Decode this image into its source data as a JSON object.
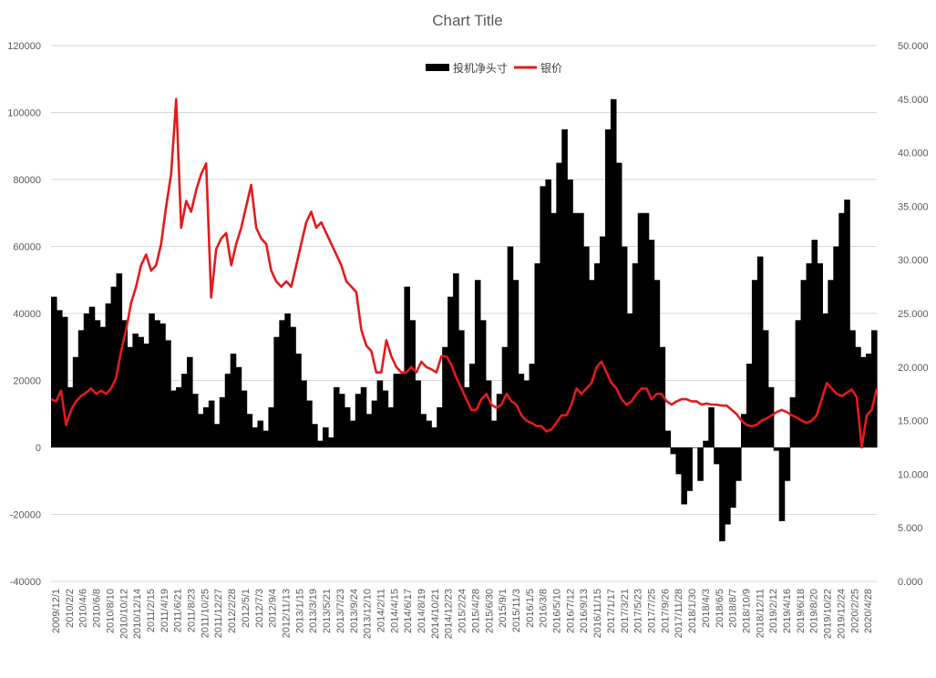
{
  "chart_data": {
    "type": "bar+line",
    "title": "Chart Title",
    "legend": {
      "position": "top",
      "items": [
        {
          "name": "投机净头寸",
          "color": "#000000",
          "symbol": "bar"
        },
        {
          "name": "银价",
          "color": "#e31a1c",
          "symbol": "line"
        }
      ]
    },
    "y_left": {
      "min": -40000,
      "max": 120000,
      "step": 20000,
      "ticks": [
        "-40000",
        "-20000",
        "0",
        "20000",
        "40000",
        "60000",
        "80000",
        "100000",
        "120000"
      ]
    },
    "y_right": {
      "min": 0,
      "max": 50,
      "step": 5,
      "ticks": [
        "0.000",
        "5.000",
        "10.000",
        "15.000",
        "20.000",
        "25.000",
        "30.000",
        "35.000",
        "40.000",
        "45.000",
        "50.000"
      ]
    },
    "x_tick_labels": [
      "2009/12/1",
      "2010/2/2",
      "2010/4/6",
      "2010/6/8",
      "2010/8/10",
      "2010/10/12",
      "2010/12/14",
      "2011/2/15",
      "2011/4/19",
      "2011/6/21",
      "2011/8/23",
      "2011/10/25",
      "2011/12/27",
      "2012/2/28",
      "2012/5/1",
      "2012/7/3",
      "2012/9/4",
      "2012/11/13",
      "2013/1/15",
      "2013/3/19",
      "2013/5/21",
      "2013/7/23",
      "2013/9/24",
      "2013/12/10",
      "2014/2/11",
      "2014/4/15",
      "2014/6/17",
      "2014/8/19",
      "2014/10/21",
      "2014/12/23",
      "2015/2/24",
      "2015/4/28",
      "2015/6/30",
      "2015/9/1",
      "2015/11/3",
      "2016/1/5",
      "2016/3/8",
      "2016/5/10",
      "2016/7/12",
      "2016/9/13",
      "2016/11/15",
      "2017/1/17",
      "2017/3/21",
      "2017/5/23",
      "2017/7/25",
      "2017/9/26",
      "2017/11/28",
      "2018/1/30",
      "2018/4/3",
      "2018/6/5",
      "2018/8/7",
      "2018/10/9",
      "2018/12/11",
      "2019/2/12",
      "2019/4/16",
      "2019/6/18",
      "2019/8/20",
      "2019/10/22",
      "2019/12/24",
      "2020/2/25",
      "2020/4/28"
    ],
    "series": [
      {
        "name": "投机净头寸",
        "type": "bar",
        "axis": "left",
        "color": "#000000",
        "points_per_tick": 9,
        "values": [
          45000,
          41000,
          39000,
          18000,
          27000,
          35000,
          40000,
          42000,
          38000,
          36000,
          43000,
          48000,
          52000,
          38000,
          30000,
          34000,
          33000,
          31000,
          40000,
          38000,
          37000,
          32000,
          17000,
          18000,
          22000,
          27000,
          16000,
          10000,
          12000,
          14000,
          7000,
          15000,
          22000,
          28000,
          24000,
          17000,
          10000,
          6000,
          8000,
          5000,
          12000,
          33000,
          38000,
          40000,
          36000,
          28000,
          20000,
          14000,
          7000,
          2000,
          6000,
          3000,
          18000,
          16000,
          12000,
          8000,
          16000,
          18000,
          10000,
          14000,
          20000,
          17000,
          12000,
          22000,
          22000,
          48000,
          38000,
          20000,
          10000,
          8000,
          6000,
          12000,
          30000,
          45000,
          52000,
          35000,
          18000,
          25000,
          50000,
          38000,
          20000,
          8000,
          16000,
          30000,
          60000,
          50000,
          22000,
          20000,
          25000,
          55000,
          78000,
          80000,
          70000,
          85000,
          95000,
          80000,
          70000,
          70000,
          60000,
          50000,
          55000,
          63000,
          95000,
          104000,
          85000,
          60000,
          40000,
          55000,
          70000,
          70000,
          62000,
          50000,
          30000,
          5000,
          -2000,
          -8000,
          -17000,
          -13000,
          0,
          -10000,
          2000,
          12000,
          -5000,
          -28000,
          -23000,
          -18000,
          -10000,
          10000,
          25000,
          50000,
          57000,
          35000,
          18000,
          -1000,
          -22000,
          -10000,
          15000,
          38000,
          50000,
          55000,
          62000,
          55000,
          40000,
          50000,
          60000,
          70000,
          74000,
          35000,
          30000,
          27000,
          28000,
          35000
        ]
      },
      {
        "name": "银价",
        "type": "line",
        "axis": "right",
        "color": "#e31a1c",
        "points_per_tick": 9,
        "values": [
          17.0,
          16.8,
          17.8,
          14.6,
          16.0,
          16.8,
          17.3,
          17.6,
          18.0,
          17.5,
          17.8,
          17.5,
          18.0,
          19.0,
          21.5,
          23.5,
          26.0,
          27.5,
          29.5,
          30.5,
          29.0,
          29.5,
          31.5,
          35.0,
          38.0,
          45.0,
          33.0,
          35.5,
          34.5,
          36.5,
          38.0,
          39.0,
          26.5,
          31.0,
          32.0,
          32.5,
          29.5,
          31.5,
          33.0,
          35.0,
          37.0,
          33.0,
          32.0,
          31.5,
          29.0,
          28.0,
          27.5,
          28.0,
          27.5,
          29.5,
          31.5,
          33.5,
          34.5,
          33.0,
          33.5,
          32.5,
          31.5,
          30.5,
          29.5,
          28.0,
          27.5,
          27.0,
          23.5,
          22.0,
          21.5,
          19.5,
          19.5,
          22.5,
          21.0,
          20.0,
          19.5,
          19.5,
          20.0,
          19.5,
          20.5,
          20.0,
          19.8,
          19.5,
          21.0,
          21.0,
          20.2,
          19.0,
          18.0,
          17.0,
          16.0,
          16.0,
          17.0,
          17.5,
          16.5,
          16.2,
          16.5,
          17.5,
          16.8,
          16.5,
          15.5,
          15.0,
          14.8,
          14.5,
          14.5,
          14.0,
          14.2,
          14.8,
          15.5,
          15.5,
          16.5,
          18.0,
          17.5,
          18.0,
          18.5,
          20.0,
          20.5,
          19.5,
          18.5,
          18.0,
          17.0,
          16.5,
          16.8,
          17.5,
          18.0,
          18.0,
          17.0,
          17.5,
          17.5,
          16.8,
          16.5,
          16.8,
          17.0,
          17.0,
          16.8,
          16.8,
          16.5,
          16.6,
          16.5,
          16.5,
          16.4,
          16.4,
          16.0,
          15.6,
          15.0,
          14.6,
          14.5,
          14.6,
          15.0,
          15.2,
          15.5,
          15.8,
          16.0,
          15.8,
          15.5,
          15.3,
          15.0,
          14.8,
          15.0,
          15.5,
          17.0,
          18.5,
          18.0,
          17.5,
          17.3,
          17.6,
          17.9,
          17.2,
          12.5,
          15.5,
          16.0,
          18.0
        ]
      }
    ]
  }
}
